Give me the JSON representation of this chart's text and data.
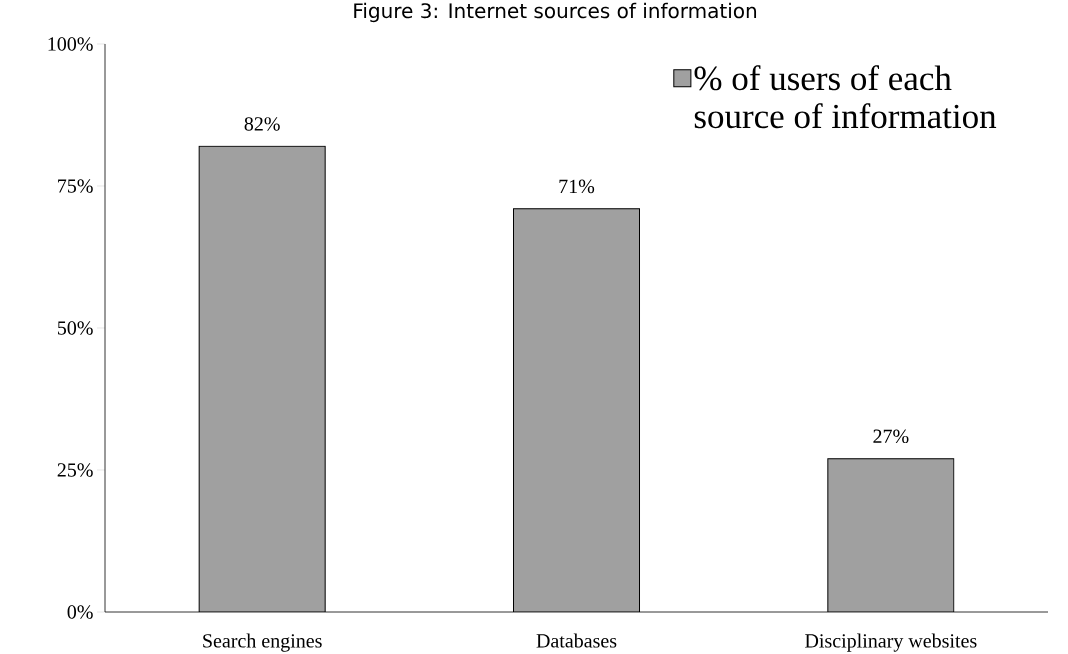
{
  "chart_data": {
    "type": "bar",
    "title": "Figure 3: Internet sources of information",
    "categories": [
      "Search engines",
      "Databases",
      "Disciplinary websites"
    ],
    "series": [
      {
        "name": "% of users of each source of information",
        "color": "#a0a0a0",
        "values": [
          82,
          71,
          27
        ],
        "value_labels": [
          "82%",
          "71%",
          "27%"
        ]
      }
    ],
    "ylim": [
      0,
      100
    ],
    "yticks": [
      {
        "value": 0,
        "label": "0%"
      },
      {
        "value": 25,
        "label": "25%"
      },
      {
        "value": 50,
        "label": "50%"
      },
      {
        "value": 75,
        "label": "75%"
      },
      {
        "value": 100,
        "label": "100%"
      }
    ],
    "grid": false,
    "legend": "top right"
  }
}
